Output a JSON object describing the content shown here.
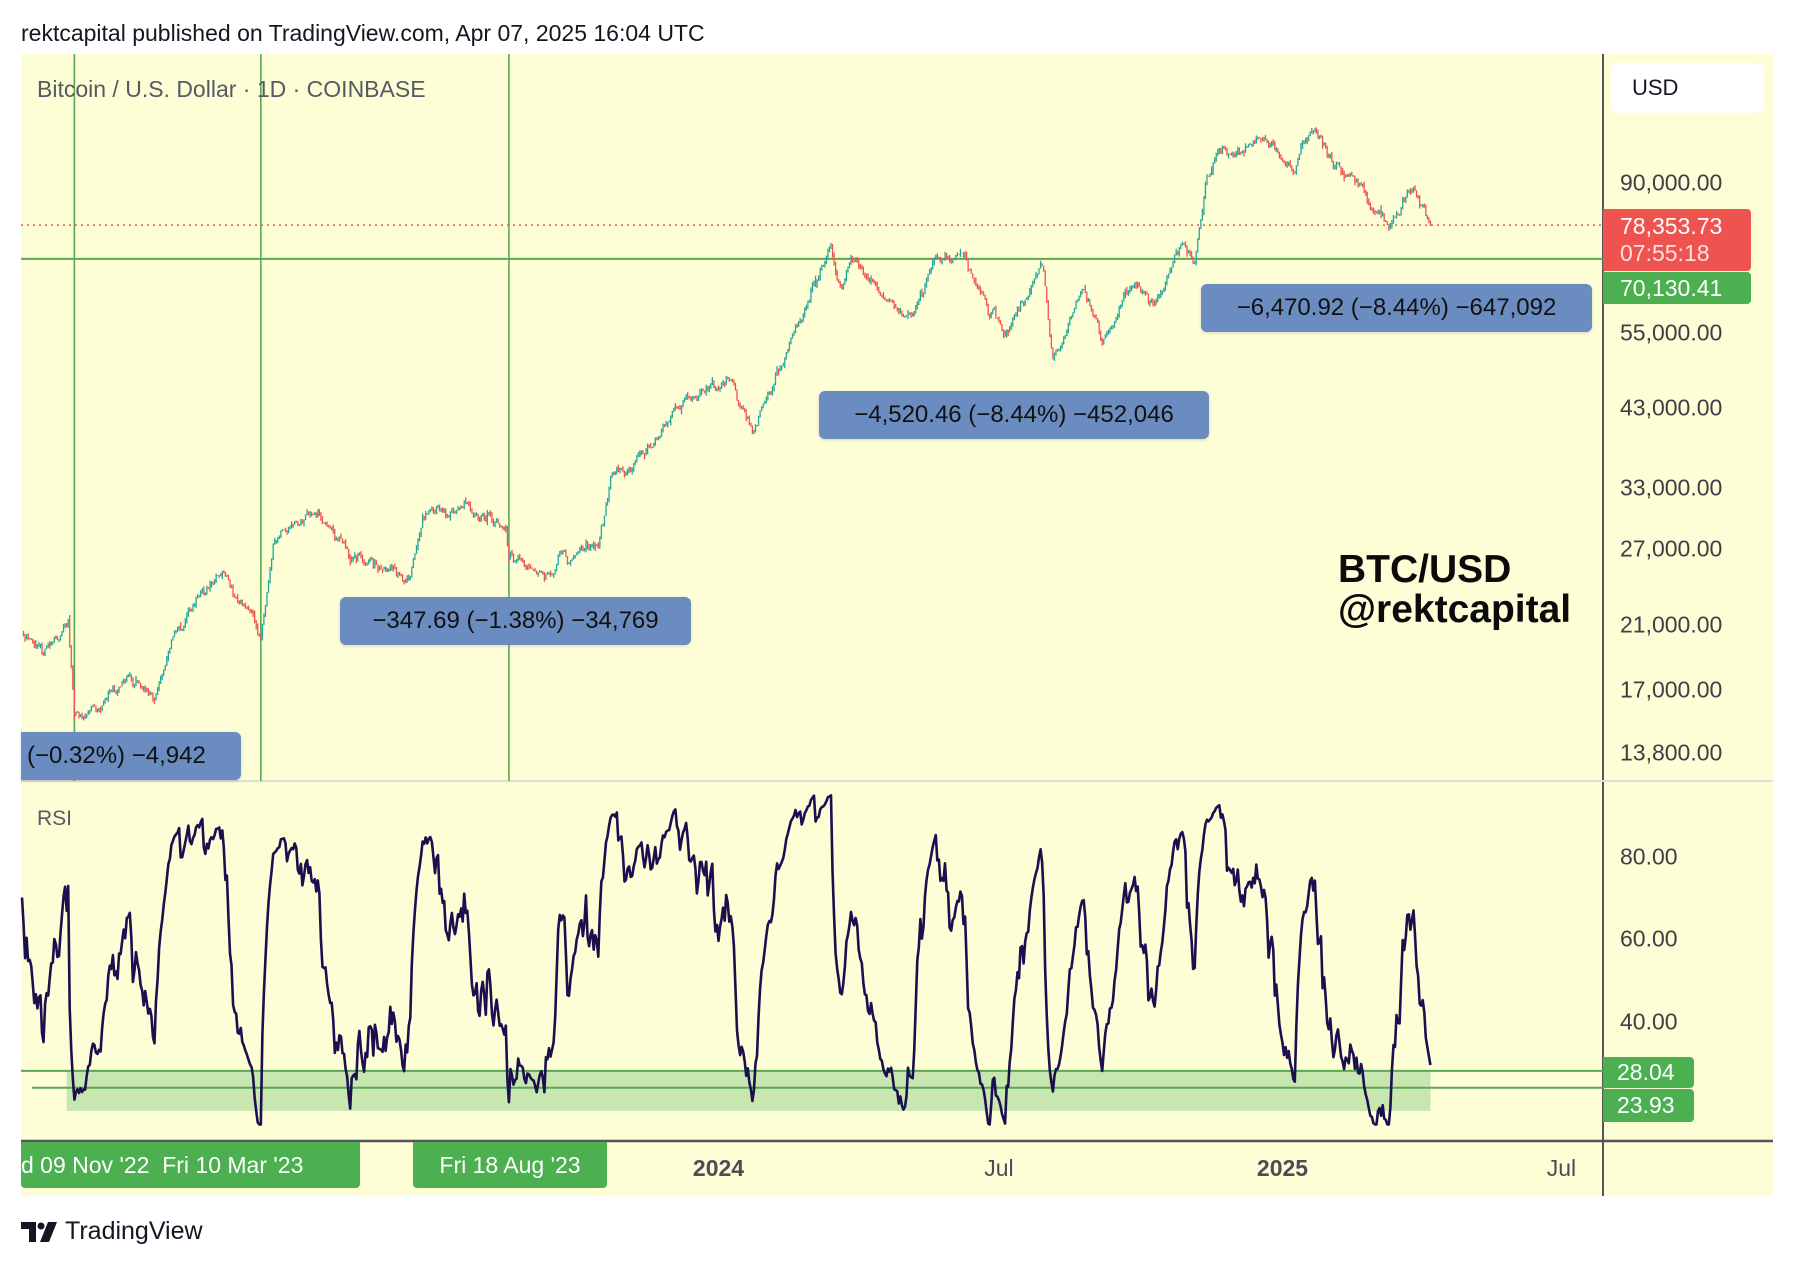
{
  "header": {
    "published": "rektcapital published on TradingView.com, Apr 07, 2025 16:04 UTC"
  },
  "legend": {
    "symbol": "Bitcoin / U.S. Dollar · 1D · COINBASE"
  },
  "currency_button": "USD",
  "watermark": {
    "line1": "BTC/USD",
    "line2": "@rektcapital"
  },
  "footer": {
    "brand": "TradingView"
  },
  "colors": {
    "background": "#fdfdd6",
    "up": "#26a69a",
    "down": "#ef5350",
    "rsi": "#1c0f4f",
    "level_line": "#5aa852",
    "measure_box": "#6a8cc0",
    "label_green": "#4caf50",
    "label_red": "#ef5350"
  },
  "price_axis": {
    "scale": "log",
    "ticks": [
      "90,000.00",
      "55,000.00",
      "43,000.00",
      "33,000.00",
      "27,000.00",
      "21,000.00",
      "17,000.00",
      "13,800.00"
    ],
    "tick_values": [
      90000,
      55000,
      43000,
      33000,
      27000,
      21000,
      17000,
      13800
    ],
    "last_price": {
      "value": 78353.73,
      "text": "78,353.73",
      "countdown": "07:55:18"
    },
    "level": {
      "value": 70130.41,
      "text": "70,130.41"
    }
  },
  "rsi": {
    "title": "RSI",
    "ticks": [
      "80.00",
      "60.00",
      "40.00"
    ],
    "tick_values": [
      80,
      60,
      40
    ],
    "levels": [
      {
        "value": 28.04,
        "text": "28.04"
      },
      {
        "value": 23.93,
        "text": "23.93"
      }
    ]
  },
  "time_axis": {
    "labels": [
      {
        "text": "2024",
        "date": "2024-01-01",
        "bold": true
      },
      {
        "text": "Jul",
        "date": "2024-07-01",
        "bold": false
      },
      {
        "text": "2025",
        "date": "2025-01-01",
        "bold": true
      },
      {
        "text": "Jul",
        "date": "2025-07-01",
        "bold": false
      }
    ],
    "highlighted": [
      {
        "text": "d 09 Nov '22  Fri 10 Mar '23"
      },
      {
        "text": "Fri 18 Aug '23"
      }
    ],
    "vertical_markers": [
      "2022-11-09",
      "2023-03-10",
      "2023-08-18"
    ]
  },
  "measurements": [
    {
      "text": "(−0.32%) −4,942"
    },
    {
      "text": "−347.69 (−1.38%) −34,769"
    },
    {
      "text": "−4,520.46 (−8.44%) −452,046"
    },
    {
      "text": "−6,470.92 (−8.44%) −647,092"
    }
  ],
  "chart_data": {
    "type": "candlestick",
    "title": "Bitcoin / U.S. Dollar · 1D · COINBASE",
    "yscale": "log",
    "ylim": [
      12500,
      115000
    ],
    "xlim": [
      "2022-10-06",
      "2025-07-31"
    ],
    "price_path": [
      [
        "2022-09-20",
        19500
      ],
      [
        "2022-10-06",
        20200
      ],
      [
        "2022-10-20",
        19200
      ],
      [
        "2022-11-05",
        21000
      ],
      [
        "2022-11-09",
        15800
      ],
      [
        "2022-11-21",
        15900
      ],
      [
        "2022-12-14",
        17800
      ],
      [
        "2022-12-31",
        16500
      ],
      [
        "2023-01-14",
        20800
      ],
      [
        "2023-01-30",
        23500
      ],
      [
        "2023-02-16",
        24500
      ],
      [
        "2023-03-10",
        20000
      ],
      [
        "2023-03-18",
        27500
      ],
      [
        "2023-04-14",
        30300
      ],
      [
        "2023-05-12",
        26300
      ],
      [
        "2023-06-15",
        25000
      ],
      [
        "2023-06-23",
        30500
      ],
      [
        "2023-07-14",
        31000
      ],
      [
        "2023-08-16",
        29000
      ],
      [
        "2023-08-18",
        26000
      ],
      [
        "2023-09-11",
        25200
      ],
      [
        "2023-10-15",
        27000
      ],
      [
        "2023-10-24",
        34000
      ],
      [
        "2023-11-15",
        37000
      ],
      [
        "2023-12-08",
        44000
      ],
      [
        "2024-01-11",
        46500
      ],
      [
        "2024-01-23",
        39500
      ],
      [
        "2024-02-15",
        52000
      ],
      [
        "2024-03-14",
        73000
      ],
      [
        "2024-03-20",
        62000
      ],
      [
        "2024-03-27",
        70000
      ],
      [
        "2024-04-19",
        63000
      ],
      [
        "2024-05-01",
        57500
      ],
      [
        "2024-05-21",
        70500
      ],
      [
        "2024-06-07",
        71000
      ],
      [
        "2024-07-05",
        54000
      ],
      [
        "2024-07-29",
        68500
      ],
      [
        "2024-08-05",
        50000
      ],
      [
        "2024-08-24",
        64000
      ],
      [
        "2024-09-06",
        53000
      ],
      [
        "2024-09-27",
        66000
      ],
      [
        "2024-10-10",
        59000
      ],
      [
        "2024-10-29",
        72500
      ],
      [
        "2024-11-05",
        68500
      ],
      [
        "2024-11-13",
        90000
      ],
      [
        "2024-11-22",
        99000
      ],
      [
        "2024-12-05",
        100000
      ],
      [
        "2024-12-17",
        106500
      ],
      [
        "2025-01-09",
        92500
      ],
      [
        "2025-01-20",
        106000
      ],
      [
        "2025-02-03",
        97000
      ],
      [
        "2025-02-25",
        86000
      ],
      [
        "2025-03-11",
        78000
      ],
      [
        "2025-03-24",
        87500
      ],
      [
        "2025-04-02",
        83000
      ],
      [
        "2025-04-07",
        78353.73
      ]
    ],
    "horizontal_levels": [
      70130.41,
      78353.73
    ],
    "rsi_levels": [
      28.04,
      23.93
    ],
    "rsi_ylim": [
      15,
      95
    ]
  }
}
